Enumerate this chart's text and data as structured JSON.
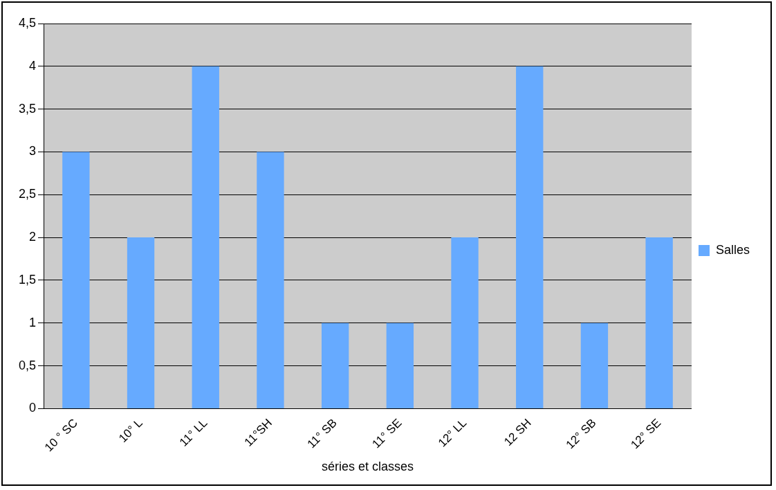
{
  "chart_data": {
    "type": "bar",
    "xlabel": "séries et classes",
    "categories": [
      "10 ° SC",
      "10° L",
      "11° LL",
      "11°SH",
      "11° SB",
      "11° SE",
      "12° LL",
      "12 SH",
      "12° SB",
      "12° SE"
    ],
    "series": [
      {
        "name": "Salles",
        "color": "#66aaff",
        "values": [
          3,
          2,
          4,
          3,
          1,
          1,
          2,
          4,
          1,
          2
        ]
      }
    ],
    "ylim": [
      0,
      4.5
    ],
    "yticks": [
      {
        "value": 0,
        "label": "0"
      },
      {
        "value": 0.5,
        "label": "0,5"
      },
      {
        "value": 1,
        "label": "1"
      },
      {
        "value": 1.5,
        "label": "1,5"
      },
      {
        "value": 2,
        "label": "2"
      },
      {
        "value": 2.5,
        "label": "2,5"
      },
      {
        "value": 3,
        "label": "3"
      },
      {
        "value": 3.5,
        "label": "3,5"
      },
      {
        "value": 4,
        "label": "4"
      },
      {
        "value": 4.5,
        "label": "4,5"
      }
    ],
    "grid": "y",
    "legend": "right"
  }
}
